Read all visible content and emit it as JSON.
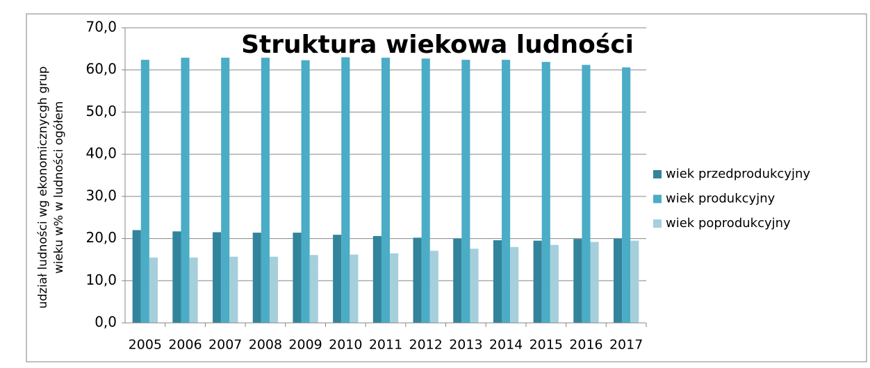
{
  "chart_data": {
    "type": "bar",
    "title": "Struktura wiekowa ludności",
    "ylabel": [
      "udział ludności wg ekonomicznycgh grup",
      "wieku w% w ludności ogółem"
    ],
    "categories": [
      "2005",
      "2006",
      "2007",
      "2008",
      "2009",
      "2010",
      "2011",
      "2012",
      "2013",
      "2014",
      "2015",
      "2016",
      "2017"
    ],
    "series": [
      {
        "name": "wiek przedprodukcyjny",
        "color": "#31849b",
        "values": [
          22.0,
          21.7,
          21.5,
          21.4,
          21.4,
          20.9,
          20.6,
          20.2,
          20.0,
          19.6,
          19.5,
          19.9,
          20.0
        ]
      },
      {
        "name": "wiek produkcyjny",
        "color": "#4bacc6",
        "values": [
          62.4,
          62.9,
          62.9,
          62.9,
          62.3,
          63.0,
          62.9,
          62.7,
          62.4,
          62.4,
          61.9,
          61.2,
          60.6
        ]
      },
      {
        "name": "wiek poprodukcyjny",
        "color": "#a6cfdc",
        "values": [
          15.5,
          15.5,
          15.7,
          15.7,
          16.1,
          16.2,
          16.5,
          17.1,
          17.6,
          18.0,
          18.5,
          19.2,
          19.5
        ]
      }
    ],
    "ylim": [
      0,
      70
    ],
    "yticks": [
      {
        "value": 0,
        "label": "0,0"
      },
      {
        "value": 10,
        "label": "10,0"
      },
      {
        "value": 20,
        "label": "20,0"
      },
      {
        "value": 30,
        "label": "30,0"
      },
      {
        "value": 40,
        "label": "40,0"
      },
      {
        "value": 50,
        "label": "50,0"
      },
      {
        "value": 60,
        "label": "60,0"
      },
      {
        "value": 70,
        "label": "70,0"
      }
    ],
    "grid": true,
    "legend": "right"
  }
}
